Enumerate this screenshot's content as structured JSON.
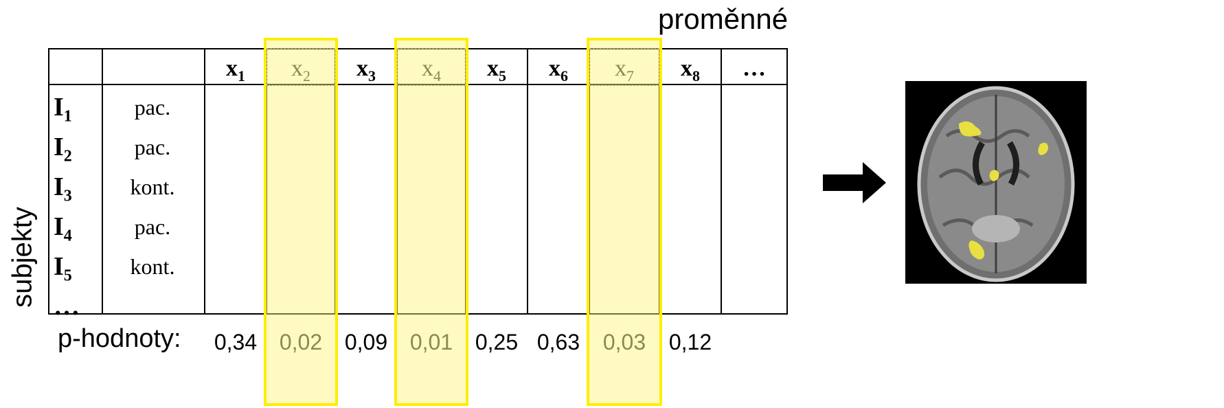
{
  "top_label": "proměnné",
  "side_label": "subjekty",
  "columns": [
    {
      "name": "x",
      "sub": "1",
      "selected": false
    },
    {
      "name": "x",
      "sub": "2",
      "selected": true
    },
    {
      "name": "x",
      "sub": "3",
      "selected": false
    },
    {
      "name": "x",
      "sub": "4",
      "selected": true
    },
    {
      "name": "x",
      "sub": "5",
      "selected": false
    },
    {
      "name": "x",
      "sub": "6",
      "selected": false
    },
    {
      "name": "x",
      "sub": "7",
      "selected": true
    },
    {
      "name": "x",
      "sub": "8",
      "selected": false
    },
    {
      "name": "…",
      "sub": "",
      "selected": false
    }
  ],
  "rows": [
    {
      "id": "I",
      "sub": "1",
      "group": "pac."
    },
    {
      "id": "I",
      "sub": "2",
      "group": "pac."
    },
    {
      "id": "I",
      "sub": "3",
      "group": "kont."
    },
    {
      "id": "I",
      "sub": "4",
      "group": "pac."
    },
    {
      "id": "I",
      "sub": "5",
      "group": "kont."
    },
    {
      "id": "…",
      "sub": "",
      "group": ""
    }
  ],
  "p_label": "p-hodnoty:",
  "p_values": [
    "0,34",
    "0,02",
    "0,09",
    "0,01",
    "0,25",
    "0,63",
    "0,03",
    "0,12"
  ],
  "colors": {
    "highlight": "#ffee00",
    "highlight_fill": "#fff578",
    "blob": "#e8e040"
  }
}
